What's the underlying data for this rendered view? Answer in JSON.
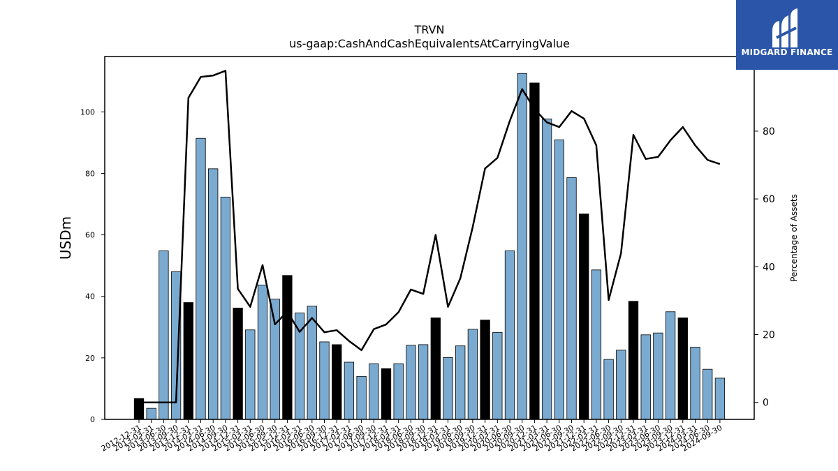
{
  "brand": {
    "name": "MIDGARD FINANCE"
  },
  "colors": {
    "bar_quarter": "#7aaad0",
    "bar_year_end": "#000000",
    "line": "#000000",
    "logo_bg": "#2a55a8"
  },
  "chart_data": {
    "type": "bar",
    "title": "TRVN",
    "subtitle": "us-gaap:CashAndCashEquivalentsAtCarryingValue",
    "ylabel": "USDm",
    "y2label": "Percentage of Assets",
    "ylim": [
      0,
      118
    ],
    "y2lim": [
      -5,
      102
    ],
    "yticks": [
      0,
      20,
      40,
      60,
      80,
      100
    ],
    "y2ticks": [
      0,
      20,
      40,
      60,
      80
    ],
    "categories": [
      "2012-12-31",
      "2013-03-31",
      "2013-06-30",
      "2013-09-30",
      "2013-12-31",
      "2014-03-31",
      "2014-06-30",
      "2014-09-30",
      "2014-12-31",
      "2015-03-31",
      "2015-06-30",
      "2015-09-30",
      "2015-12-31",
      "2016-03-31",
      "2016-06-30",
      "2016-09-30",
      "2016-12-31",
      "2017-03-31",
      "2017-06-30",
      "2017-09-30",
      "2017-12-31",
      "2018-03-31",
      "2018-06-30",
      "2018-09-30",
      "2018-12-31",
      "2019-03-31",
      "2019-06-30",
      "2019-09-30",
      "2019-12-31",
      "2020-03-31",
      "2020-06-30",
      "2020-09-30",
      "2020-12-31",
      "2021-03-31",
      "2021-06-30",
      "2021-09-30",
      "2021-12-31",
      "2022-03-31",
      "2022-06-30",
      "2022-09-30",
      "2022-12-31",
      "2023-03-31",
      "2023-06-30",
      "2023-09-30",
      "2023-12-31",
      "2024-03-31",
      "2024-06-30",
      "2024-09-30"
    ],
    "series": [
      {
        "type": "bar",
        "values": [
          6.8,
          3.6,
          54.8,
          48.0,
          38.0,
          91.4,
          81.5,
          72.3,
          36.2,
          29.1,
          43.7,
          39.1,
          46.8,
          34.6,
          36.8,
          25.2,
          24.3,
          18.6,
          14.0,
          18.1,
          16.5,
          18.1,
          24.1,
          24.3,
          33.0,
          20.1,
          23.9,
          29.3,
          32.3,
          28.3,
          54.8,
          112.5,
          109.4,
          97.7,
          90.9,
          78.6,
          66.8,
          48.6,
          19.5,
          22.5,
          38.4,
          27.5,
          28.1,
          35.0,
          33.0,
          23.5,
          16.3,
          13.4
        ],
        "year_end": [
          true,
          false,
          false,
          false,
          true,
          false,
          false,
          false,
          true,
          false,
          false,
          false,
          true,
          false,
          false,
          false,
          true,
          false,
          false,
          false,
          true,
          false,
          false,
          false,
          true,
          false,
          false,
          false,
          true,
          false,
          false,
          false,
          true,
          false,
          false,
          false,
          true,
          false,
          false,
          false,
          true,
          false,
          false,
          false,
          true,
          false,
          false,
          false
        ]
      },
      {
        "type": "line",
        "axis": "right",
        "values": [
          0.0,
          0.0,
          0.0,
          0.0,
          89.8,
          96.0,
          96.4,
          97.8,
          33.5,
          28.2,
          40.5,
          23.0,
          26.8,
          20.8,
          24.9,
          20.7,
          21.3,
          18.1,
          15.4,
          21.6,
          23.0,
          26.6,
          33.3,
          32.0,
          49.4,
          28.2,
          36.6,
          51.7,
          69.0,
          72.1,
          83.0,
          92.4,
          86.5,
          82.6,
          81.2,
          85.9,
          83.7,
          75.8,
          30.2,
          44.0,
          78.9,
          71.8,
          72.4,
          77.3,
          81.2,
          75.8,
          71.5,
          70.3
        ]
      }
    ],
    "legend": "none",
    "grid": false
  }
}
